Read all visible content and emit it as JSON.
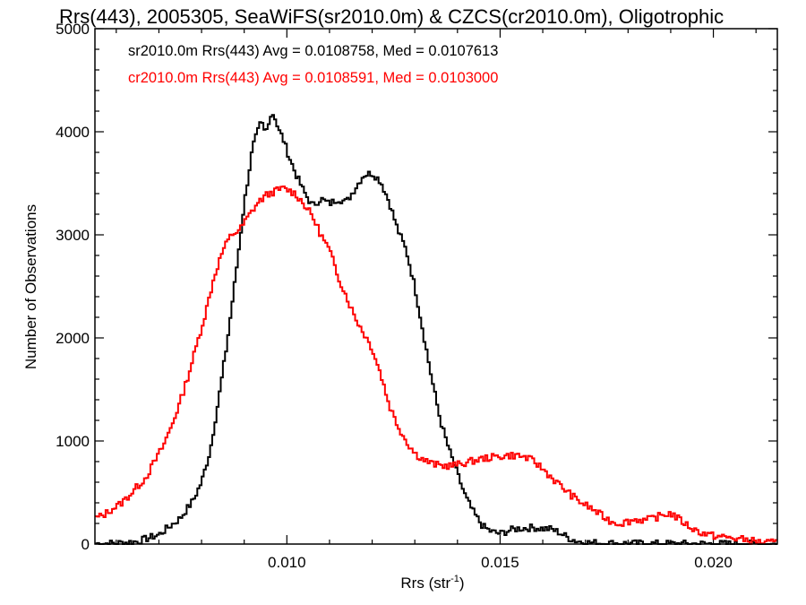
{
  "chart_data": {
    "type": "line",
    "title": "Rrs(443), 2005305, SeaWiFS(sr2010.0m) & CZCS(cr2010.0m), Oligotrophic",
    "xlabel": "Rrs (str",
    "xlabel_sup": "-1",
    "xlabel_close": ")",
    "ylabel": "Number of Observations",
    "xlim": [
      0.0055,
      0.0215
    ],
    "ylim": [
      0,
      5000
    ],
    "x_ticks": [
      0.01,
      0.015,
      0.02
    ],
    "x_tick_labels": [
      "0.010",
      "0.015",
      "0.020"
    ],
    "y_ticks": [
      0,
      1000,
      2000,
      3000,
      4000,
      5000
    ],
    "y_tick_labels": [
      "0",
      "1000",
      "2000",
      "3000",
      "4000",
      "5000"
    ],
    "grid": false,
    "legend_placement": "top-left",
    "series": [
      {
        "name": "sr2010.0m Rrs(443) Avg = 0.0108758, Med = 0.0107613",
        "color": "#000000",
        "style": "step",
        "points": [
          [
            0.0055,
            5
          ],
          [
            0.006,
            8
          ],
          [
            0.0065,
            25
          ],
          [
            0.007,
            90
          ],
          [
            0.0075,
            250
          ],
          [
            0.0078,
            420
          ],
          [
            0.008,
            600
          ],
          [
            0.0082,
            900
          ],
          [
            0.0084,
            1400
          ],
          [
            0.0086,
            1950
          ],
          [
            0.0088,
            2600
          ],
          [
            0.009,
            3300
          ],
          [
            0.0092,
            3850
          ],
          [
            0.0094,
            4100
          ],
          [
            0.0095,
            3980
          ],
          [
            0.0096,
            4150
          ],
          [
            0.0097,
            4180
          ],
          [
            0.0098,
            4020
          ],
          [
            0.0099,
            3950
          ],
          [
            0.01,
            3820
          ],
          [
            0.0102,
            3600
          ],
          [
            0.0104,
            3420
          ],
          [
            0.0106,
            3280
          ],
          [
            0.0108,
            3350
          ],
          [
            0.011,
            3300
          ],
          [
            0.0112,
            3350
          ],
          [
            0.0114,
            3320
          ],
          [
            0.0116,
            3450
          ],
          [
            0.0118,
            3580
          ],
          [
            0.012,
            3600
          ],
          [
            0.0122,
            3520
          ],
          [
            0.0124,
            3320
          ],
          [
            0.0126,
            3050
          ],
          [
            0.0128,
            2850
          ],
          [
            0.013,
            2500
          ],
          [
            0.0132,
            2050
          ],
          [
            0.0134,
            1600
          ],
          [
            0.0136,
            1200
          ],
          [
            0.0138,
            920
          ],
          [
            0.014,
            680
          ],
          [
            0.0142,
            450
          ],
          [
            0.0144,
            290
          ],
          [
            0.0146,
            170
          ],
          [
            0.0148,
            120
          ],
          [
            0.015,
            100
          ],
          [
            0.0152,
            130
          ],
          [
            0.0154,
            150
          ],
          [
            0.0156,
            155
          ],
          [
            0.0158,
            160
          ],
          [
            0.016,
            150
          ],
          [
            0.0162,
            145
          ],
          [
            0.0164,
            110
          ],
          [
            0.0166,
            60
          ],
          [
            0.0168,
            30
          ],
          [
            0.017,
            15
          ],
          [
            0.0175,
            8
          ],
          [
            0.018,
            5
          ],
          [
            0.019,
            3
          ],
          [
            0.02,
            2
          ],
          [
            0.0215,
            0
          ]
        ]
      },
      {
        "name": "cr2010.0m Rrs(443) Avg = 0.0108591, Med = 0.0103000",
        "color": "#ff0000",
        "style": "step",
        "points": [
          [
            0.0055,
            250
          ],
          [
            0.0057,
            280
          ],
          [
            0.0059,
            340
          ],
          [
            0.0061,
            390
          ],
          [
            0.0063,
            470
          ],
          [
            0.0065,
            560
          ],
          [
            0.0067,
            650
          ],
          [
            0.0069,
            800
          ],
          [
            0.0071,
            950
          ],
          [
            0.0073,
            1150
          ],
          [
            0.0075,
            1380
          ],
          [
            0.0077,
            1650
          ],
          [
            0.0079,
            1950
          ],
          [
            0.0081,
            2250
          ],
          [
            0.0083,
            2600
          ],
          [
            0.0085,
            2850
          ],
          [
            0.0087,
            3000
          ],
          [
            0.0089,
            3050
          ],
          [
            0.0091,
            3180
          ],
          [
            0.0093,
            3300
          ],
          [
            0.0095,
            3380
          ],
          [
            0.0097,
            3420
          ],
          [
            0.0099,
            3450
          ],
          [
            0.01,
            3440
          ],
          [
            0.0102,
            3400
          ],
          [
            0.0104,
            3300
          ],
          [
            0.0106,
            3180
          ],
          [
            0.0108,
            3000
          ],
          [
            0.011,
            2850
          ],
          [
            0.0112,
            2600
          ],
          [
            0.0114,
            2400
          ],
          [
            0.0116,
            2200
          ],
          [
            0.0118,
            2050
          ],
          [
            0.012,
            1900
          ],
          [
            0.0122,
            1650
          ],
          [
            0.0124,
            1350
          ],
          [
            0.0126,
            1150
          ],
          [
            0.0128,
            1000
          ],
          [
            0.013,
            880
          ],
          [
            0.0132,
            820
          ],
          [
            0.0134,
            780
          ],
          [
            0.0136,
            760
          ],
          [
            0.0138,
            760
          ],
          [
            0.014,
            770
          ],
          [
            0.0142,
            790
          ],
          [
            0.0144,
            810
          ],
          [
            0.0146,
            830
          ],
          [
            0.0148,
            840
          ],
          [
            0.015,
            850
          ],
          [
            0.0152,
            860
          ],
          [
            0.0154,
            860
          ],
          [
            0.0156,
            840
          ],
          [
            0.0158,
            800
          ],
          [
            0.016,
            730
          ],
          [
            0.0162,
            650
          ],
          [
            0.0164,
            570
          ],
          [
            0.0166,
            500
          ],
          [
            0.0168,
            430
          ],
          [
            0.017,
            380
          ],
          [
            0.0172,
            330
          ],
          [
            0.0174,
            270
          ],
          [
            0.0176,
            220
          ],
          [
            0.0178,
            200
          ],
          [
            0.018,
            220
          ],
          [
            0.0182,
            240
          ],
          [
            0.0184,
            230
          ],
          [
            0.0186,
            250
          ],
          [
            0.0188,
            280
          ],
          [
            0.019,
            300
          ],
          [
            0.0192,
            240
          ],
          [
            0.0194,
            180
          ],
          [
            0.0196,
            130
          ],
          [
            0.0198,
            100
          ],
          [
            0.02,
            80
          ],
          [
            0.0202,
            70
          ],
          [
            0.0204,
            60
          ],
          [
            0.0206,
            50
          ],
          [
            0.0208,
            40
          ],
          [
            0.021,
            25
          ],
          [
            0.0212,
            15
          ],
          [
            0.0215,
            10
          ]
        ]
      }
    ]
  }
}
